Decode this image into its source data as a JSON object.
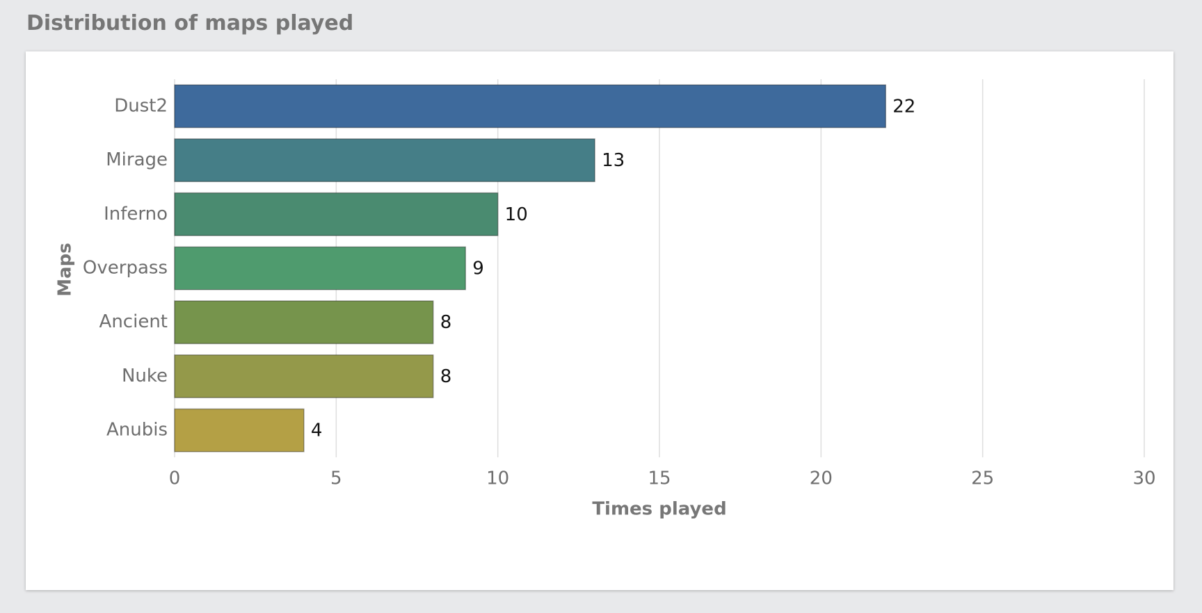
{
  "chart_data": {
    "type": "bar",
    "orientation": "horizontal",
    "title": "Distribution of maps played",
    "xlabel": "Times played",
    "ylabel": "Maps",
    "categories": [
      "Dust2",
      "Mirage",
      "Inferno",
      "Overpass",
      "Ancient",
      "Nuke",
      "Anubis"
    ],
    "values": [
      22,
      13,
      10,
      9,
      8,
      8,
      4
    ],
    "colors": [
      "#3e6a9c",
      "#457e87",
      "#4a8b70",
      "#4f9b6e",
      "#76944c",
      "#94994a",
      "#b4a045"
    ],
    "xlim": [
      0,
      30
    ],
    "xticks": [
      0,
      5,
      10,
      15,
      20,
      25,
      30
    ],
    "grid": true
  }
}
